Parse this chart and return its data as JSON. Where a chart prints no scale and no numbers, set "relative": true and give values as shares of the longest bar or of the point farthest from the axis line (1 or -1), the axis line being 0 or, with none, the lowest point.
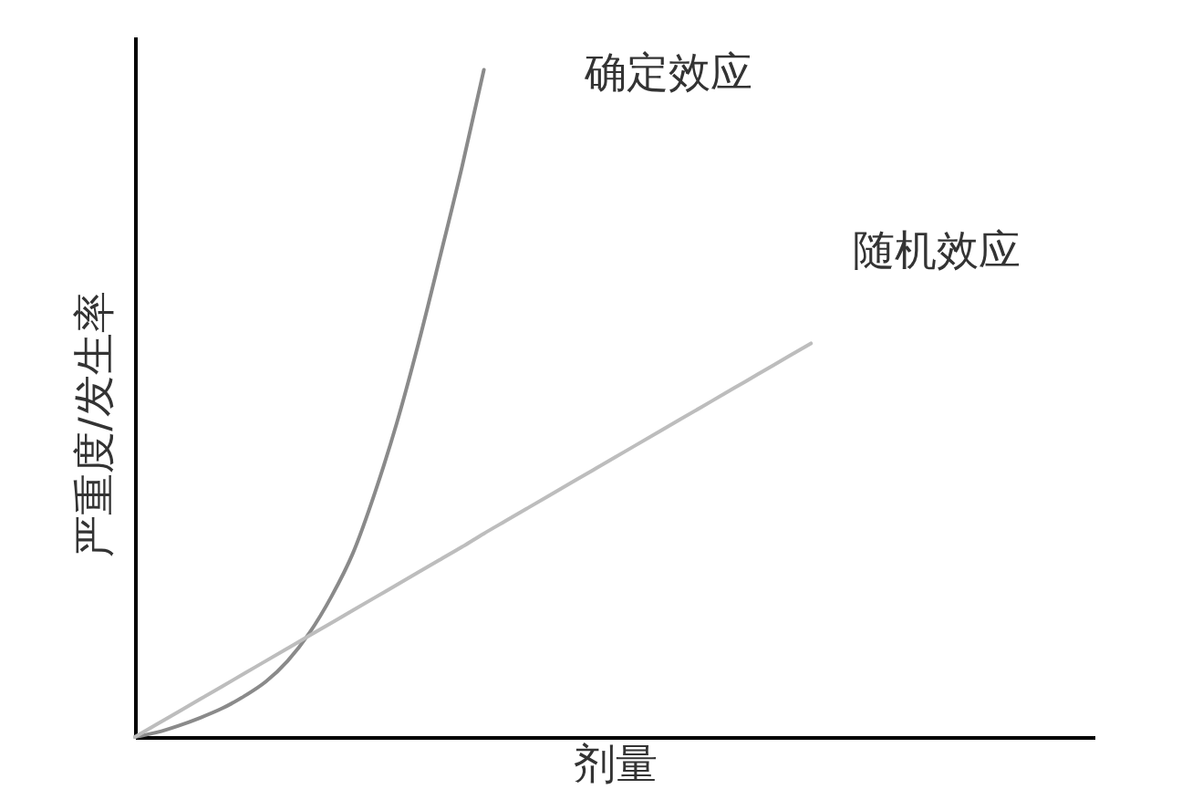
{
  "chart_data": {
    "type": "line",
    "xlabel": "剂量",
    "ylabel": "严重度/发生率",
    "relative": true,
    "tick_labels": false,
    "categories": [
      null,
      null,
      null,
      null,
      null,
      null,
      null,
      null,
      null,
      null,
      null,
      null,
      null,
      null,
      null,
      null,
      null,
      null,
      null,
      null,
      null,
      null,
      null,
      null,
      null,
      null,
      null,
      null,
      null,
      null,
      null,
      null,
      null,
      null,
      null,
      null,
      null,
      null,
      null,
      null,
      null,
      null,
      null,
      null,
      null
    ],
    "series": [
      {
        "name": "确定效应",
        "color": "#8a8a8a",
        "values": [
          0,
          0.007,
          0.017,
          0.029,
          0.043,
          0.061,
          0.083,
          0.114,
          0.156,
          0.21,
          0.276,
          0.366,
          0.47,
          0.59,
          0.721,
          0.855,
          1,
          null,
          null,
          null,
          null,
          null,
          null,
          null,
          null,
          null,
          null,
          null,
          null,
          null,
          null,
          null,
          null,
          null,
          null,
          null,
          null,
          null,
          null,
          null,
          null,
          null,
          null,
          null,
          null
        ]
      },
      {
        "name": "随机效应",
        "color": "#bdbdbd",
        "values": [
          0,
          0.019,
          0.038,
          0.057,
          0.076,
          0.095,
          0.114,
          0.133,
          0.152,
          0.171,
          0.19,
          0.209,
          0.228,
          0.247,
          0.266,
          0.285,
          0.305,
          0.324,
          0.343,
          0.362,
          0.381,
          0.4,
          0.419,
          0.438,
          0.457,
          0.476,
          0.495,
          0.514,
          0.533,
          0.552,
          0.571,
          0.59,
          null,
          null,
          null,
          null,
          null,
          null,
          null,
          null,
          null,
          null,
          null,
          null,
          null
        ]
      }
    ]
  }
}
